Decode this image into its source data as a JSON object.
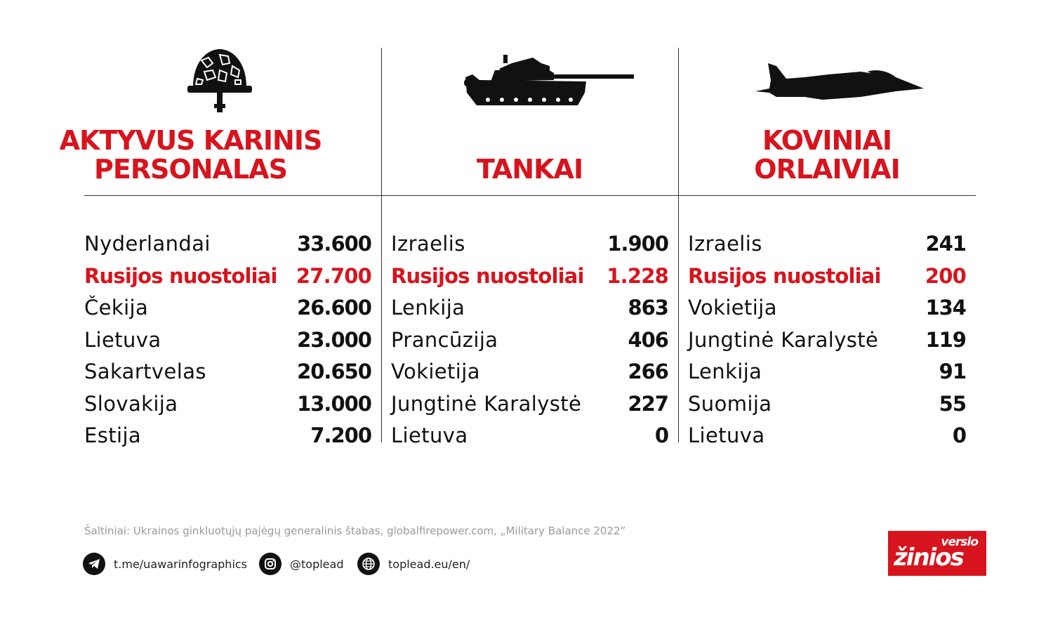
{
  "columns": [
    {
      "title_line1": "AKTYVUS KARINIS",
      "title_line2": "PERSONALAS",
      "icon": "helmet-icon",
      "rows": [
        {
          "name": "Nyderlandai",
          "value": "33.600",
          "highlight": false
        },
        {
          "name": "Rusijos nuostoliai",
          "value": "27.700",
          "highlight": true
        },
        {
          "name": "Čekija",
          "value": "26.600",
          "highlight": false
        },
        {
          "name": "Lietuva",
          "value": "23.000",
          "highlight": false
        },
        {
          "name": "Sakartvelas",
          "value": "20.650",
          "highlight": false
        },
        {
          "name": "Slovakija",
          "value": "13.000",
          "highlight": false
        },
        {
          "name": "Estija",
          "value": "7.200",
          "highlight": false
        }
      ]
    },
    {
      "title_line1": "",
      "title_line2": "TANKAI",
      "icon": "tank-icon",
      "rows": [
        {
          "name": "Izraelis",
          "value": "1.900",
          "highlight": false
        },
        {
          "name": "Rusijos nuostoliai",
          "value": "1.228",
          "highlight": true
        },
        {
          "name": "Lenkija",
          "value": "863",
          "highlight": false
        },
        {
          "name": "Prancūzija",
          "value": "406",
          "highlight": false
        },
        {
          "name": "Vokietija",
          "value": "266",
          "highlight": false
        },
        {
          "name": "Jungtinė Karalystė",
          "value": "227",
          "highlight": false
        },
        {
          "name": "Lietuva",
          "value": "0",
          "highlight": false
        }
      ]
    },
    {
      "title_line1": "KOVINIAI",
      "title_line2": "ORLAIVIAI",
      "icon": "fighter-jet-icon",
      "rows": [
        {
          "name": "Izraelis",
          "value": "241",
          "highlight": false
        },
        {
          "name": "Rusijos nuostoliai",
          "value": "200",
          "highlight": true
        },
        {
          "name": "Vokietija",
          "value": "134",
          "highlight": false
        },
        {
          "name": "Jungtinė Karalystė",
          "value": "119",
          "highlight": false
        },
        {
          "name": "Lenkija",
          "value": "91",
          "highlight": false
        },
        {
          "name": "Suomija",
          "value": "55",
          "highlight": false
        },
        {
          "name": "Lietuva",
          "value": "0",
          "highlight": false
        }
      ]
    }
  ],
  "footer": {
    "sources": "Šaltiniai: Ukrainos ginkluotųjų pajėgų generalinis štabas, globalfirepower.com, „Military Balance 2022”",
    "telegram": "t.me/uawarinfographics",
    "instagram": "@toplead",
    "website": "toplead.eu/en/",
    "logo_top": "verslo",
    "logo_bottom": "žinios"
  },
  "colors": {
    "accent": "#d7141d",
    "text": "#111111",
    "muted": "#9a9a9a",
    "background": "#ffffff"
  }
}
